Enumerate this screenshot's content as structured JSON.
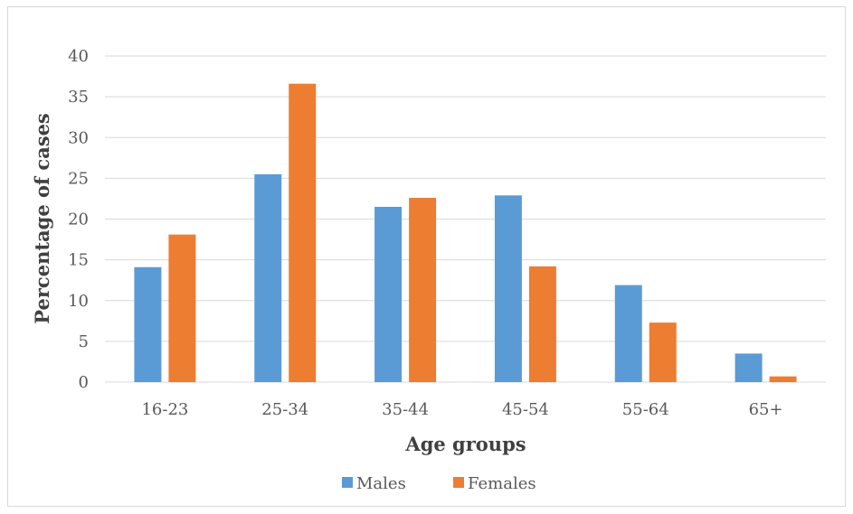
{
  "chart_data": {
    "type": "bar",
    "categories": [
      "16-23",
      "25-34",
      "35-44",
      "45-54",
      "55-64",
      "65+"
    ],
    "series": [
      {
        "name": "Males",
        "color": "#5b9bd5",
        "values": [
          14.1,
          25.5,
          21.5,
          22.9,
          11.9,
          3.5
        ]
      },
      {
        "name": "Females",
        "color": "#ed7d31",
        "values": [
          18.1,
          36.6,
          22.6,
          14.2,
          7.3,
          0.7
        ]
      }
    ],
    "xlabel": "Age groups",
    "ylabel": "Percentage of cases",
    "ylim": [
      0,
      40
    ],
    "yticks": [
      0,
      5,
      10,
      15,
      20,
      25,
      30,
      35,
      40
    ],
    "grid": true,
    "legend_position": "bottom"
  }
}
